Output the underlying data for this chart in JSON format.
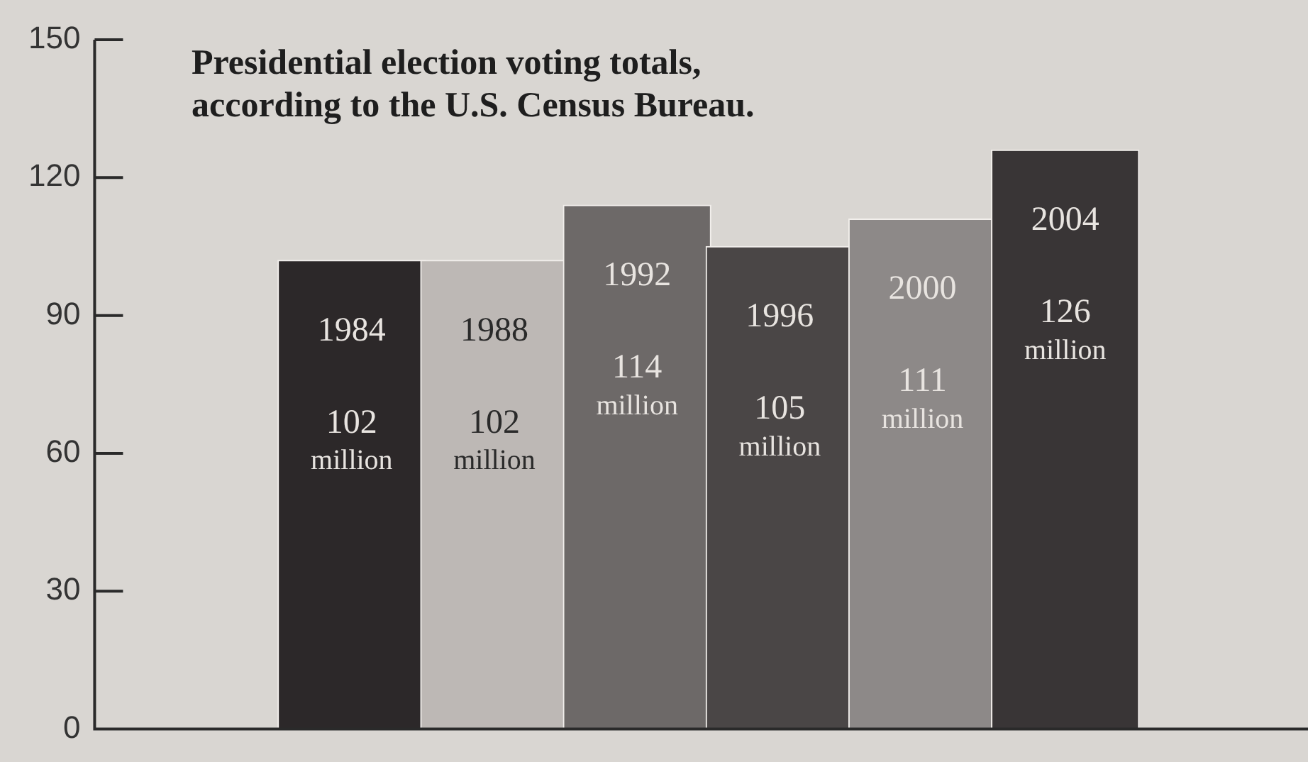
{
  "chart_data": {
    "type": "bar",
    "title": "Presidential election voting totals,\naccording to the U.S. Census Bureau.",
    "categories": [
      "1984",
      "1988",
      "1992",
      "1996",
      "2000",
      "2004"
    ],
    "values": [
      102,
      102,
      114,
      105,
      111,
      126
    ],
    "value_labels": [
      "102 million",
      "102 million",
      "114 million",
      "105 million",
      "111 million",
      "126 million"
    ],
    "colors": [
      "#2c2829",
      "#bdb8b5",
      "#6d6968",
      "#4a4646",
      "#8d8988",
      "#393536"
    ],
    "ylim": [
      0,
      150
    ],
    "yticks": [
      0,
      30,
      60,
      90,
      120,
      150
    ],
    "grid": false,
    "legend": false
  }
}
